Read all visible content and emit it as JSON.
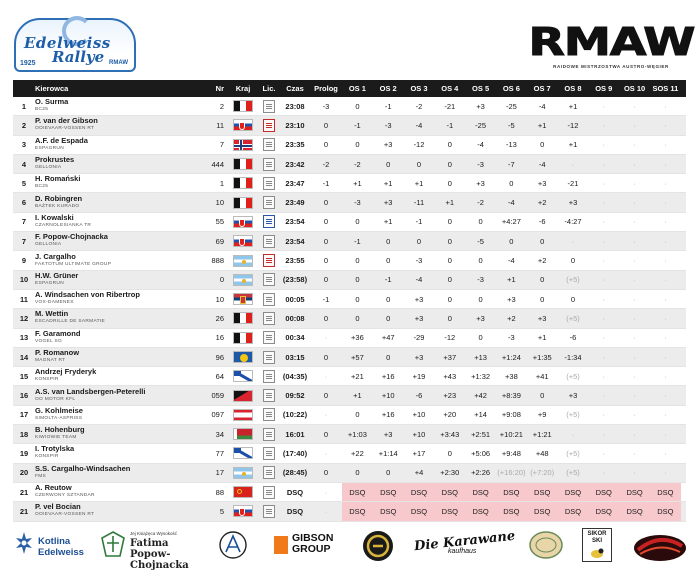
{
  "header": {
    "left_logo": {
      "line1": "Edelweiss",
      "line2": "Rallye",
      "year": "1925",
      "brand": "RMAW"
    },
    "right_logo": {
      "big": "RMAW",
      "tagline": "RAIDOWE MISTRZOSTWA AUSTRO-WĘGIER"
    }
  },
  "columns": {
    "driver": "Kierowca",
    "nr": "Nr",
    "kraj": "Kraj",
    "lic": "Lic.",
    "czas": "Czas",
    "prolog": "Prolog",
    "stages": [
      "OS 1",
      "OS 2",
      "OS 3",
      "OS 4",
      "OS 5",
      "OS 6",
      "OS 7",
      "OS 8",
      "OS 9",
      "OS 10",
      "SOS 11"
    ]
  },
  "rows": [
    {
      "pos": "1",
      "name": "O. Surma",
      "team": "BC25",
      "nr": "2",
      "flag": "fr",
      "lic": "grey",
      "czas": "23:08",
      "prolog": "-3",
      "os": [
        "0",
        "-1",
        "-2",
        "-21",
        "+3",
        "-25",
        "-4",
        "+1",
        "·",
        "·",
        "·"
      ]
    },
    {
      "pos": "2",
      "name": "P. van der Gibson",
      "team": "OOIEVAAR-VOSSEN RT",
      "nr": "11",
      "flag": "sk",
      "lic": "red",
      "czas": "23:10",
      "prolog": "0",
      "os": [
        "-1",
        "-3",
        "-4",
        "-1",
        "-25",
        "-5",
        "+1",
        "-12",
        "·",
        "·",
        "·"
      ]
    },
    {
      "pos": "3",
      "name": "A.F. de Espada",
      "team": "ESPAGRUN",
      "nr": "7",
      "flag": "no",
      "lic": "grey",
      "czas": "23:35",
      "prolog": "0",
      "os": [
        "0",
        "+3",
        "-12",
        "0",
        "-4",
        "-13",
        "0",
        "+1",
        "·",
        "·",
        "·"
      ]
    },
    {
      "pos": "4",
      "name": "Prokrustes",
      "team": "GELLONIA",
      "nr": "444",
      "flag": "it",
      "lic": "grey",
      "czas": "23:42",
      "prolog": "-2",
      "os": [
        "-2",
        "0",
        "0",
        "0",
        "-3",
        "-7",
        "-4",
        "·",
        "·",
        "·",
        "·"
      ]
    },
    {
      "pos": "5",
      "name": "H. Romański",
      "team": "BC25",
      "nr": "1",
      "flag": "fr",
      "lic": "grey",
      "czas": "23:47",
      "prolog": "-1",
      "os": [
        "+1",
        "+1",
        "+1",
        "0",
        "+3",
        "0",
        "+3",
        "-21",
        "·",
        "·",
        "·"
      ]
    },
    {
      "pos": "6",
      "name": "D. Robingren",
      "team": "BAŻTEK KURADO",
      "nr": "10",
      "flag": "fr",
      "lic": "grey",
      "czas": "23:49",
      "prolog": "0",
      "os": [
        "-3",
        "+3",
        "-11",
        "+1",
        "-2",
        "-4",
        "+2",
        "+3",
        "·",
        "·",
        "·"
      ]
    },
    {
      "pos": "7",
      "name": "I. Kowalski",
      "team": "CZARNOLESIANKA TR",
      "nr": "55",
      "flag": "sk",
      "lic": "blue",
      "czas": "23:54",
      "prolog": "0",
      "os": [
        "0",
        "+1",
        "-1",
        "0",
        "0",
        "+4:27",
        "-6",
        "-4:27",
        "·",
        "·",
        "·"
      ]
    },
    {
      "pos": "7",
      "name": "F. Popow-Chojnacka",
      "team": "GELLONIA",
      "nr": "69",
      "flag": "sk",
      "lic": "grey",
      "czas": "23:54",
      "prolog": "0",
      "os": [
        "-1",
        "0",
        "0",
        "0",
        "-5",
        "0",
        "0",
        "·",
        "·",
        "·",
        "·"
      ]
    },
    {
      "pos": "9",
      "name": "J. Cargalho",
      "team": "FAKTOTUM ULTIMATE GROUP",
      "nr": "888",
      "flag": "ar",
      "lic": "red",
      "czas": "23:55",
      "prolog": "0",
      "os": [
        "0",
        "0",
        "-3",
        "0",
        "0",
        "-4",
        "+2",
        "0",
        "·",
        "·",
        "·"
      ]
    },
    {
      "pos": "10",
      "name": "H.W. Grüner",
      "team": "ESPAGRUN",
      "nr": "0",
      "flag": "ar",
      "lic": "grey",
      "czas": "(23:58)",
      "prolog": "0",
      "os": [
        "0",
        "-1",
        "-4",
        "0",
        "-3",
        "+1",
        "0",
        "(+5)",
        "·",
        "·",
        "·"
      ]
    },
    {
      "pos": "11",
      "name": "A. Windsachen von Ribertrop",
      "team": "VOX-DAMENES",
      "nr": "10",
      "flag": "rs",
      "lic": "grey",
      "czas": "00:05",
      "prolog": "-1",
      "os": [
        "0",
        "0",
        "+3",
        "0",
        "0",
        "+3",
        "0",
        "0",
        "·",
        "·",
        "·"
      ]
    },
    {
      "pos": "12",
      "name": "M. Wettin",
      "team": "ESCADRILLE DE SARMATIE",
      "nr": "26",
      "flag": "it",
      "lic": "grey",
      "czas": "00:08",
      "prolog": "0",
      "os": [
        "0",
        "0",
        "+3",
        "0",
        "+3",
        "+2",
        "+3",
        "(+5)",
        "·",
        "·",
        "·"
      ]
    },
    {
      "pos": "13",
      "name": "F. Garamond",
      "team": "VOGEL SG",
      "nr": "16",
      "flag": "fr",
      "lic": "grey",
      "czas": "00:34",
      "prolog": "·",
      "os": [
        "+36",
        "+47",
        "-29",
        "-12",
        "0",
        "-3",
        "+1",
        "-6",
        "·",
        "·",
        "·"
      ]
    },
    {
      "pos": "14",
      "name": "P. Romanow",
      "team": "MAGNAT RT",
      "nr": "96",
      "flag": "kz",
      "lic": "grey",
      "czas": "03:15",
      "prolog": "0",
      "os": [
        "+57",
        "0",
        "+3",
        "+37",
        "+13",
        "+1:24",
        "+1:35",
        "-1:34",
        "·",
        "·",
        "·"
      ]
    },
    {
      "pos": "15",
      "name": "Andrzej Fryderyk",
      "team": "KONSPIR",
      "nr": "64",
      "flag": "gr",
      "lic": "grey",
      "czas": "(04:35)",
      "prolog": "·",
      "os": [
        "+21",
        "+16",
        "+19",
        "+43",
        "+1:32",
        "+38",
        "+41",
        "(+5)",
        "·",
        "·",
        "·"
      ]
    },
    {
      "pos": "16",
      "name": "A.S. van Landsbergen-Peterelli",
      "team": "OO MOTOR KFL",
      "nr": "059",
      "flag": "ja",
      "lic": "grey",
      "czas": "09:52",
      "prolog": "0",
      "os": [
        "+1",
        "+10",
        "-6",
        "+23",
        "+42",
        "+8:39",
        "0",
        "+3",
        "·",
        "·",
        "·"
      ]
    },
    {
      "pos": "17",
      "name": "G. Kohlmeise",
      "team": "SIMOLTA-ASPRISS",
      "nr": "097",
      "flag": "pf",
      "lic": "grey",
      "czas": "(10:22)",
      "prolog": "·",
      "os": [
        "0",
        "+16",
        "+10",
        "+20",
        "+14",
        "+9:08",
        "+9",
        "(+5)",
        "·",
        "·",
        "·"
      ]
    },
    {
      "pos": "18",
      "name": "B. Hohenburg",
      "team": "KIWIOWIE TEAM",
      "nr": "34",
      "flag": "by",
      "lic": "grey",
      "czas": "16:01",
      "prolog": "0",
      "os": [
        "+1:03",
        "+3",
        "+10",
        "+3:43",
        "+2:51",
        "+10:21",
        "+1:21",
        "·",
        "·",
        "·",
        "·"
      ]
    },
    {
      "pos": "19",
      "name": "I. Trotylska",
      "team": "KONSPIR",
      "nr": "77",
      "flag": "gr",
      "lic": "grey",
      "czas": "(17:40)",
      "prolog": "·",
      "os": [
        "+22",
        "+1:14",
        "+17",
        "0",
        "+5:06",
        "+9:48",
        "+48",
        "(+5)",
        "·",
        "·",
        "·"
      ]
    },
    {
      "pos": "20",
      "name": "S.S. Cargalho-Windsachen",
      "team": "FMS",
      "nr": "17",
      "flag": "ar",
      "lic": "grey",
      "czas": "(28:45)",
      "prolog": "0",
      "os": [
        "0",
        "0",
        "+4",
        "+2:30",
        "+2:26",
        "(+16:20)",
        "(+7:20)",
        "(+5)",
        "·",
        "·",
        "·"
      ]
    },
    {
      "pos": "21",
      "name": "A. Reutow",
      "team": "CZERWONY SZTANDAR",
      "nr": "88",
      "flag": "su",
      "lic": "grey",
      "czas": "DSQ",
      "prolog": "·",
      "os": [
        "DSQ",
        "DSQ",
        "DSQ",
        "DSQ",
        "DSQ",
        "DSQ",
        "DSQ",
        "DSQ",
        "DSQ",
        "DSQ",
        "DSQ"
      ]
    },
    {
      "pos": "21",
      "name": "P. vel Bocian",
      "team": "OOIEVAAR-VOSSEN RT",
      "nr": "5",
      "flag": "sk",
      "lic": "grey",
      "czas": "DSQ",
      "prolog": "·",
      "os": [
        "DSQ",
        "DSQ",
        "DSQ",
        "DSQ",
        "DSQ",
        "DSQ",
        "DSQ",
        "DSQ",
        "DSQ",
        "DSQ",
        "DSQ"
      ]
    }
  ],
  "sponsors": {
    "kotlina": "Kotlina Edelweiss",
    "fatima_small": "Jej Książęca Wysokość",
    "fatima": "Fatima Popow-Chojnacka",
    "gibson": "GIBSON GROUP",
    "karawane": "Die Karawane",
    "karawane_sub": "kaufhaus",
    "sikor": "SIKOR SKI"
  },
  "colors": {
    "header_bg": "#1b1b1b",
    "dsq_bg": "#f7c9cc",
    "row_alt": "#ececec",
    "accent_blue": "#1d5ea8"
  }
}
